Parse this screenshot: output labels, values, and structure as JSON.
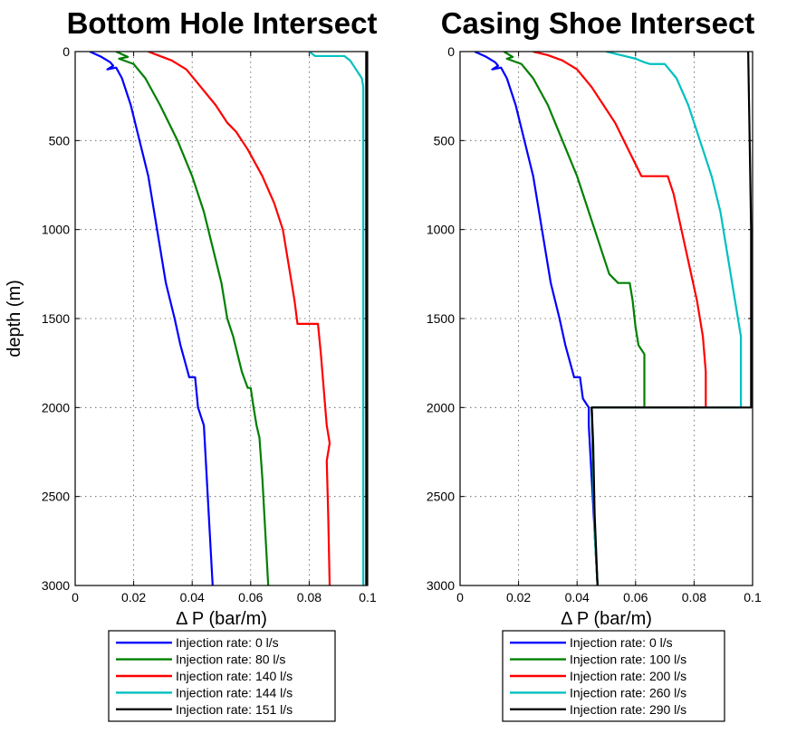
{
  "chart_data": [
    {
      "type": "line",
      "title": "Bottom Hole Intersect",
      "xlabel": "Δ P (bar/m)",
      "ylabel": "depth (m)",
      "xlim": [
        0,
        0.1
      ],
      "ylim": [
        0,
        3000
      ],
      "y_reversed": true,
      "grid": true,
      "xticks": [
        "0",
        "0.02",
        "0.04",
        "0.06",
        "0.08",
        "0.1"
      ],
      "yticks": [
        "0",
        "500",
        "1000",
        "1500",
        "2000",
        "2500",
        "3000"
      ],
      "legend_placement": "below",
      "series": [
        {
          "name": "Injection rate: 0 l/s",
          "color": "#0000ff",
          "points": [
            [
              0.005,
              0
            ],
            [
              0.009,
              30
            ],
            [
              0.012,
              60
            ],
            [
              0.013,
              80
            ],
            [
              0.011,
              100
            ],
            [
              0.014,
              90
            ],
            [
              0.016,
              150
            ],
            [
              0.019,
              300
            ],
            [
              0.022,
              500
            ],
            [
              0.025,
              700
            ],
            [
              0.027,
              900
            ],
            [
              0.029,
              1100
            ],
            [
              0.031,
              1300
            ],
            [
              0.034,
              1500
            ],
            [
              0.036,
              1650
            ],
            [
              0.039,
              1830
            ],
            [
              0.041,
              1830
            ],
            [
              0.042,
              2000
            ],
            [
              0.043,
              2050
            ],
            [
              0.044,
              2100
            ],
            [
              0.045,
              2400
            ],
            [
              0.046,
              2700
            ],
            [
              0.047,
              3000
            ]
          ]
        },
        {
          "name": "Injection rate: 80 l/s",
          "color": "#008000",
          "points": [
            [
              0.014,
              0
            ],
            [
              0.018,
              30
            ],
            [
              0.015,
              40
            ],
            [
              0.02,
              70
            ],
            [
              0.024,
              150
            ],
            [
              0.029,
              300
            ],
            [
              0.035,
              500
            ],
            [
              0.04,
              700
            ],
            [
              0.044,
              900
            ],
            [
              0.047,
              1100
            ],
            [
              0.05,
              1300
            ],
            [
              0.052,
              1500
            ],
            [
              0.054,
              1600
            ],
            [
              0.057,
              1800
            ],
            [
              0.059,
              1890
            ],
            [
              0.06,
              1890
            ],
            [
              0.061,
              2000
            ],
            [
              0.062,
              2100
            ],
            [
              0.063,
              2170
            ],
            [
              0.064,
              2400
            ],
            [
              0.065,
              2700
            ],
            [
              0.066,
              3000
            ]
          ]
        },
        {
          "name": "Injection rate: 140 l/s",
          "color": "#ff0000",
          "points": [
            [
              0.025,
              0
            ],
            [
              0.029,
              25
            ],
            [
              0.033,
              50
            ],
            [
              0.038,
              100
            ],
            [
              0.043,
              200
            ],
            [
              0.048,
              300
            ],
            [
              0.052,
              400
            ],
            [
              0.055,
              450
            ],
            [
              0.059,
              550
            ],
            [
              0.064,
              700
            ],
            [
              0.068,
              850
            ],
            [
              0.071,
              1000
            ],
            [
              0.073,
              1200
            ],
            [
              0.075,
              1400
            ],
            [
              0.076,
              1530
            ],
            [
              0.083,
              1530
            ],
            [
              0.084,
              1700
            ],
            [
              0.085,
              1900
            ],
            [
              0.086,
              2100
            ],
            [
              0.087,
              2200
            ],
            [
              0.086,
              2300
            ],
            [
              0.0865,
              2600
            ],
            [
              0.087,
              3000
            ]
          ]
        },
        {
          "name": "Injection rate: 144 l/s",
          "color": "#00c0c0",
          "points": [
            [
              0.08,
              0
            ],
            [
              0.082,
              25
            ],
            [
              0.092,
              25
            ],
            [
              0.094,
              50
            ],
            [
              0.096,
              100
            ],
            [
              0.098,
              150
            ],
            [
              0.0985,
              200
            ],
            [
              0.0985,
              1000
            ],
            [
              0.0985,
              2000
            ],
            [
              0.0985,
              3000
            ]
          ]
        },
        {
          "name": "Injection rate: 151 l/s",
          "color": "#000000",
          "points": [
            [
              0.0995,
              0
            ],
            [
              0.0995,
              1000
            ],
            [
              0.0995,
              2000
            ],
            [
              0.0995,
              3000
            ]
          ]
        }
      ]
    },
    {
      "type": "line",
      "title": "Casing Shoe Intersect",
      "xlabel": "Δ P (bar/m)",
      "ylabel": "",
      "xlim": [
        0,
        0.1
      ],
      "ylim": [
        0,
        3000
      ],
      "y_reversed": true,
      "grid": true,
      "xticks": [
        "0",
        "0.02",
        "0.04",
        "0.06",
        "0.08",
        "0.1"
      ],
      "yticks": [
        "0",
        "500",
        "1000",
        "1500",
        "2000",
        "2500",
        "3000"
      ],
      "legend_placement": "below",
      "series": [
        {
          "name": "Injection rate: 0 l/s",
          "color": "#0000ff",
          "points": [
            [
              0.005,
              0
            ],
            [
              0.009,
              30
            ],
            [
              0.012,
              60
            ],
            [
              0.013,
              80
            ],
            [
              0.011,
              100
            ],
            [
              0.014,
              90
            ],
            [
              0.016,
              150
            ],
            [
              0.019,
              300
            ],
            [
              0.022,
              500
            ],
            [
              0.025,
              700
            ],
            [
              0.027,
              900
            ],
            [
              0.029,
              1100
            ],
            [
              0.031,
              1300
            ],
            [
              0.034,
              1500
            ],
            [
              0.036,
              1650
            ],
            [
              0.039,
              1830
            ],
            [
              0.041,
              1830
            ],
            [
              0.042,
              1950
            ],
            [
              0.044,
              2000
            ],
            [
              0.044,
              2100
            ],
            [
              0.045,
              2400
            ],
            [
              0.046,
              2700
            ],
            [
              0.047,
              3000
            ]
          ]
        },
        {
          "name": "Injection rate: 100 l/s",
          "color": "#008000",
          "points": [
            [
              0.015,
              0
            ],
            [
              0.018,
              30
            ],
            [
              0.016,
              40
            ],
            [
              0.021,
              70
            ],
            [
              0.025,
              150
            ],
            [
              0.03,
              300
            ],
            [
              0.035,
              500
            ],
            [
              0.04,
              700
            ],
            [
              0.044,
              900
            ],
            [
              0.048,
              1100
            ],
            [
              0.051,
              1250
            ],
            [
              0.054,
              1300
            ],
            [
              0.058,
              1300
            ],
            [
              0.059,
              1400
            ],
            [
              0.06,
              1550
            ],
            [
              0.061,
              1650
            ],
            [
              0.063,
              1700
            ],
            [
              0.063,
              2000
            ],
            [
              0.045,
              2000
            ],
            [
              0.0455,
              2400
            ],
            [
              0.046,
              2700
            ],
            [
              0.047,
              3000
            ]
          ]
        },
        {
          "name": "Injection rate: 200 l/s",
          "color": "#ff0000",
          "points": [
            [
              0.025,
              0
            ],
            [
              0.03,
              20
            ],
            [
              0.035,
              50
            ],
            [
              0.04,
              100
            ],
            [
              0.045,
              200
            ],
            [
              0.049,
              300
            ],
            [
              0.053,
              400
            ],
            [
              0.056,
              500
            ],
            [
              0.059,
              600
            ],
            [
              0.062,
              700
            ],
            [
              0.065,
              700
            ],
            [
              0.071,
              700
            ],
            [
              0.073,
              800
            ],
            [
              0.075,
              950
            ],
            [
              0.077,
              1100
            ],
            [
              0.079,
              1250
            ],
            [
              0.081,
              1400
            ],
            [
              0.082,
              1500
            ],
            [
              0.083,
              1600
            ],
            [
              0.084,
              1800
            ],
            [
              0.084,
              2000
            ],
            [
              0.045,
              2000
            ],
            [
              0.046,
              2700
            ],
            [
              0.047,
              3000
            ]
          ]
        },
        {
          "name": "Injection rate: 260 l/s",
          "color": "#00c0c0",
          "points": [
            [
              0.05,
              0
            ],
            [
              0.055,
              20
            ],
            [
              0.06,
              40
            ],
            [
              0.063,
              60
            ],
            [
              0.065,
              70
            ],
            [
              0.07,
              70
            ],
            [
              0.074,
              150
            ],
            [
              0.078,
              300
            ],
            [
              0.082,
              500
            ],
            [
              0.086,
              700
            ],
            [
              0.089,
              900
            ],
            [
              0.091,
              1100
            ],
            [
              0.093,
              1300
            ],
            [
              0.095,
              1500
            ],
            [
              0.096,
              1600
            ],
            [
              0.096,
              1800
            ],
            [
              0.096,
              2000
            ],
            [
              0.045,
              2000
            ],
            [
              0.046,
              2700
            ],
            [
              0.047,
              3000
            ]
          ]
        },
        {
          "name": "Injection rate: 290 l/s",
          "color": "#000000",
          "points": [
            [
              0.0985,
              0
            ],
            [
              0.099,
              500
            ],
            [
              0.0995,
              1000
            ],
            [
              0.0995,
              1500
            ],
            [
              0.0995,
              2000
            ],
            [
              0.045,
              2000
            ],
            [
              0.0455,
              2200
            ],
            [
              0.046,
              2600
            ],
            [
              0.047,
              3000
            ]
          ]
        }
      ]
    }
  ]
}
